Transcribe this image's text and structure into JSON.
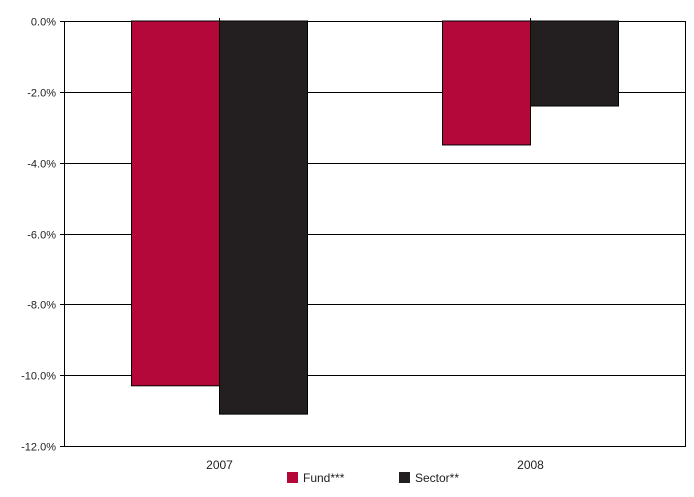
{
  "chart_data": {
    "type": "bar",
    "categories": [
      "2007",
      "2008"
    ],
    "series": [
      {
        "name": "Fund***",
        "values": [
          -10.3,
          -3.5
        ],
        "color": "#b5083a"
      },
      {
        "name": "Sector**",
        "values": [
          -11.1,
          -2.4
        ],
        "color": "#231f20"
      }
    ],
    "ylim": [
      -12,
      0
    ],
    "yticks": [
      0,
      -2,
      -4,
      -6,
      -8,
      -10,
      -12
    ],
    "ytick_labels": [
      "0.0%",
      "-2.0%",
      "-4.0%",
      "-6.0%",
      "-8.0%",
      "-10.0%",
      "-12.0%"
    ],
    "grid": true,
    "legend_position": "bottom-center"
  }
}
